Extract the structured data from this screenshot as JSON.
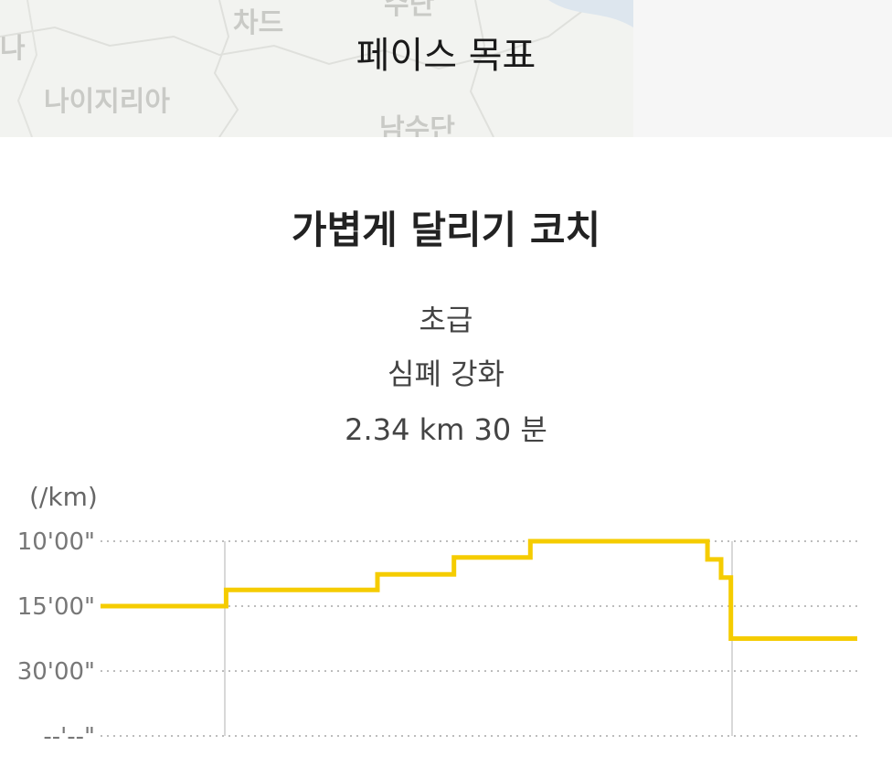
{
  "map": {
    "labels": [
      "차드",
      "나",
      "나이지리아",
      "남수단",
      "수단"
    ]
  },
  "header": {
    "title": "페이스 목표"
  },
  "coach": {
    "title": "가볍게 달리기 코치",
    "level": "초급",
    "focus": "심폐 강화",
    "summary": "2.34 km 30 분"
  },
  "chart_data": {
    "type": "line",
    "style": "step",
    "ylabel": "(/km)",
    "y_ticks": [
      "10'00\"",
      "15'00\"",
      "30'00\"",
      "--'--\""
    ],
    "series": [
      {
        "color": "#f5cc00",
        "points": [
          {
            "x": 0.0,
            "y": 1.0
          },
          {
            "x": 0.166,
            "y": 1.0
          },
          {
            "x": 0.166,
            "y": 0.75
          },
          {
            "x": 0.366,
            "y": 0.75
          },
          {
            "x": 0.366,
            "y": 0.51
          },
          {
            "x": 0.467,
            "y": 0.51
          },
          {
            "x": 0.467,
            "y": 0.25
          },
          {
            "x": 0.568,
            "y": 0.25
          },
          {
            "x": 0.568,
            "y": 0.0
          },
          {
            "x": 0.802,
            "y": 0.0
          },
          {
            "x": 0.802,
            "y": 0.28
          },
          {
            "x": 0.82,
            "y": 0.28
          },
          {
            "x": 0.82,
            "y": 0.56
          },
          {
            "x": 0.833,
            "y": 0.56
          },
          {
            "x": 0.833,
            "y": 1.5
          },
          {
            "x": 1.0,
            "y": 1.5
          }
        ]
      }
    ],
    "grid": true
  }
}
